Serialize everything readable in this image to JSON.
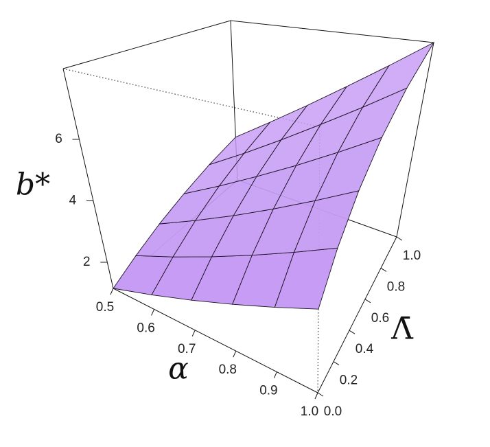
{
  "chart_data": {
    "type": "surface",
    "color": "#c69cf4",
    "xlabel": "α",
    "ylabel": "Λ̄",
    "zlabel": "b*",
    "x": [
      0.5,
      0.6,
      0.7,
      0.8,
      0.9,
      1.0
    ],
    "y": [
      0,
      0.2,
      0.4,
      0.6,
      0.8,
      1.0
    ],
    "z": [
      [
        1.15,
        1.53,
        1.92,
        2.3,
        2.69,
        3.07
      ],
      [
        1.6,
        2.1,
        2.61,
        3.11,
        3.61,
        4.12
      ],
      [
        2.05,
        2.67,
        3.29,
        3.92,
        4.54,
        5.16
      ],
      [
        2.5,
        3.24,
        3.98,
        4.72,
        5.47,
        6.21
      ],
      [
        2.95,
        3.81,
        4.67,
        5.53,
        6.39,
        7.25
      ],
      [
        3.4,
        4.38,
        5.36,
        6.34,
        7.32,
        8.3
      ]
    ],
    "xlim": [
      0.5,
      1.0
    ],
    "ylim": [
      0,
      1.0
    ],
    "zlim": [
      1.15,
      8.3
    ],
    "xticks": [
      0.5,
      0.6,
      0.7,
      0.8,
      0.9,
      {
        "value": 1.0,
        "label": "1.0"
      }
    ],
    "yticks": [
      {
        "value": 0,
        "label": "0.0"
      },
      0.2,
      0.4,
      0.6,
      0.8,
      {
        "value": 1.0,
        "label": "1.0"
      }
    ],
    "zticks": [
      2,
      4,
      6
    ]
  }
}
